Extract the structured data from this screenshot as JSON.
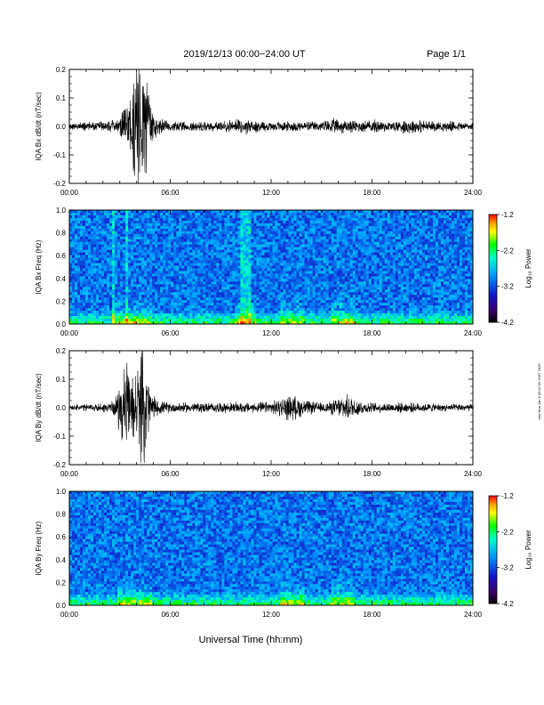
{
  "header": {
    "title": "2019/12/13  00:00−24:00 UT",
    "page": "Page 1/1"
  },
  "footer_text": "mst Mon Jan 6 00:07:00 GMT 2020",
  "x_axis": {
    "label": "Universal Time (hh:mm)",
    "ticks": [
      "00:00",
      "06:00",
      "12:00",
      "18:00",
      "24:00"
    ]
  },
  "colorbar": {
    "label": "Log₁₀ Power",
    "ticks": [
      "-1.2",
      "-2.2",
      "-3.2",
      "-4.2"
    ],
    "colors": [
      "#ff0000",
      "#ffa000",
      "#ffff00",
      "#00ff00",
      "#00ffff",
      "#0000ff",
      "#000080",
      "#400060",
      "#000000"
    ]
  },
  "chart_data": [
    {
      "type": "line",
      "name": "bx-dbdt",
      "ylabel": "IQA Bx dB/dt (nT/sec)",
      "xlim": [
        0,
        24
      ],
      "ylim": [
        -0.2,
        0.2
      ],
      "yticks": [
        "0.2",
        "0.1",
        "0.0",
        "-0.1",
        "-0.2"
      ],
      "color": "#000000",
      "noise_envelope": {
        "x_hours": [
          0,
          1,
          2,
          2.5,
          3,
          3.3,
          3.6,
          3.9,
          4.2,
          4.5,
          4.8,
          5.2,
          6,
          7,
          8,
          9,
          9.7,
          10.2,
          11,
          12,
          13,
          14,
          15,
          15.5,
          16,
          17,
          18,
          18.5,
          19,
          20,
          20.5,
          21,
          22,
          23,
          24
        ],
        "amplitude_nT_per_s": [
          0.015,
          0.017,
          0.02,
          0.025,
          0.04,
          0.08,
          0.12,
          0.25,
          0.25,
          0.25,
          0.1,
          0.04,
          0.02,
          0.018,
          0.02,
          0.02,
          0.025,
          0.035,
          0.025,
          0.02,
          0.02,
          0.02,
          0.02,
          0.03,
          0.03,
          0.025,
          0.025,
          0.03,
          0.02,
          0.03,
          0.03,
          0.025,
          0.02,
          0.02,
          0.018
        ]
      }
    },
    {
      "type": "heatmap",
      "name": "bx-freq",
      "ylabel": "IQA Bx Freq (Hz)",
      "xlim": [
        0,
        24
      ],
      "ylim": [
        0.0,
        1.0
      ],
      "yticks": [
        "1.0",
        "0.8",
        "0.6",
        "0.4",
        "0.2",
        "0.0"
      ],
      "zlim": [
        -4.2,
        -1.2
      ],
      "zlabel": "Log₁₀ Power",
      "broadband_bursts_hours": [
        [
          2.55,
          2.65
        ],
        [
          3.3,
          3.5
        ],
        [
          4.9,
          4.95
        ],
        [
          10.2,
          10.85
        ],
        [
          17.45,
          17.5
        ]
      ],
      "low_freq_enhancements_hours": [
        [
          2.5,
          5.0
        ],
        [
          9.8,
          11.2
        ],
        [
          12.5,
          14.0
        ],
        [
          15.5,
          17.0
        ]
      ]
    },
    {
      "type": "line",
      "name": "by-dbdt",
      "ylabel": "IQA By dB/dt (nT/sec)",
      "xlim": [
        0,
        24
      ],
      "ylim": [
        -0.2,
        0.2
      ],
      "yticks": [
        "0.2",
        "0.1",
        "0.0",
        "-0.1",
        "-0.2"
      ],
      "color": "#000000",
      "noise_envelope": {
        "x_hours": [
          0,
          1,
          2,
          2.7,
          3,
          3.3,
          3.6,
          3.9,
          4.2,
          4.5,
          4.8,
          5.2,
          6,
          7,
          8,
          9,
          10,
          11,
          12,
          12.5,
          13,
          13.3,
          13.7,
          14,
          15,
          15.5,
          16,
          16.5,
          17,
          17.5,
          18,
          19,
          20,
          21,
          22,
          23,
          24
        ],
        "amplitude_nT_per_s": [
          0.012,
          0.015,
          0.018,
          0.03,
          0.1,
          0.2,
          0.12,
          0.15,
          0.2,
          0.25,
          0.08,
          0.03,
          0.02,
          0.02,
          0.02,
          0.02,
          0.022,
          0.02,
          0.025,
          0.035,
          0.05,
          0.05,
          0.04,
          0.03,
          0.02,
          0.025,
          0.04,
          0.05,
          0.04,
          0.025,
          0.02,
          0.02,
          0.02,
          0.018,
          0.015,
          0.015,
          0.015
        ]
      }
    },
    {
      "type": "heatmap",
      "name": "by-freq",
      "ylabel": "IQA By Freq (Hz)",
      "xlim": [
        0,
        24
      ],
      "ylim": [
        0.0,
        1.0
      ],
      "yticks": [
        "1.0",
        "0.8",
        "0.6",
        "0.4",
        "0.2",
        "0.0"
      ],
      "zlim": [
        -4.2,
        -1.2
      ],
      "zlabel": "Log₁₀ Power",
      "broadband_bursts_hours": [
        [
          17.45,
          17.5
        ]
      ],
      "low_freq_enhancements_hours": [
        [
          2.8,
          5.0
        ],
        [
          12.5,
          14.0
        ],
        [
          15.5,
          17.0
        ]
      ]
    }
  ]
}
